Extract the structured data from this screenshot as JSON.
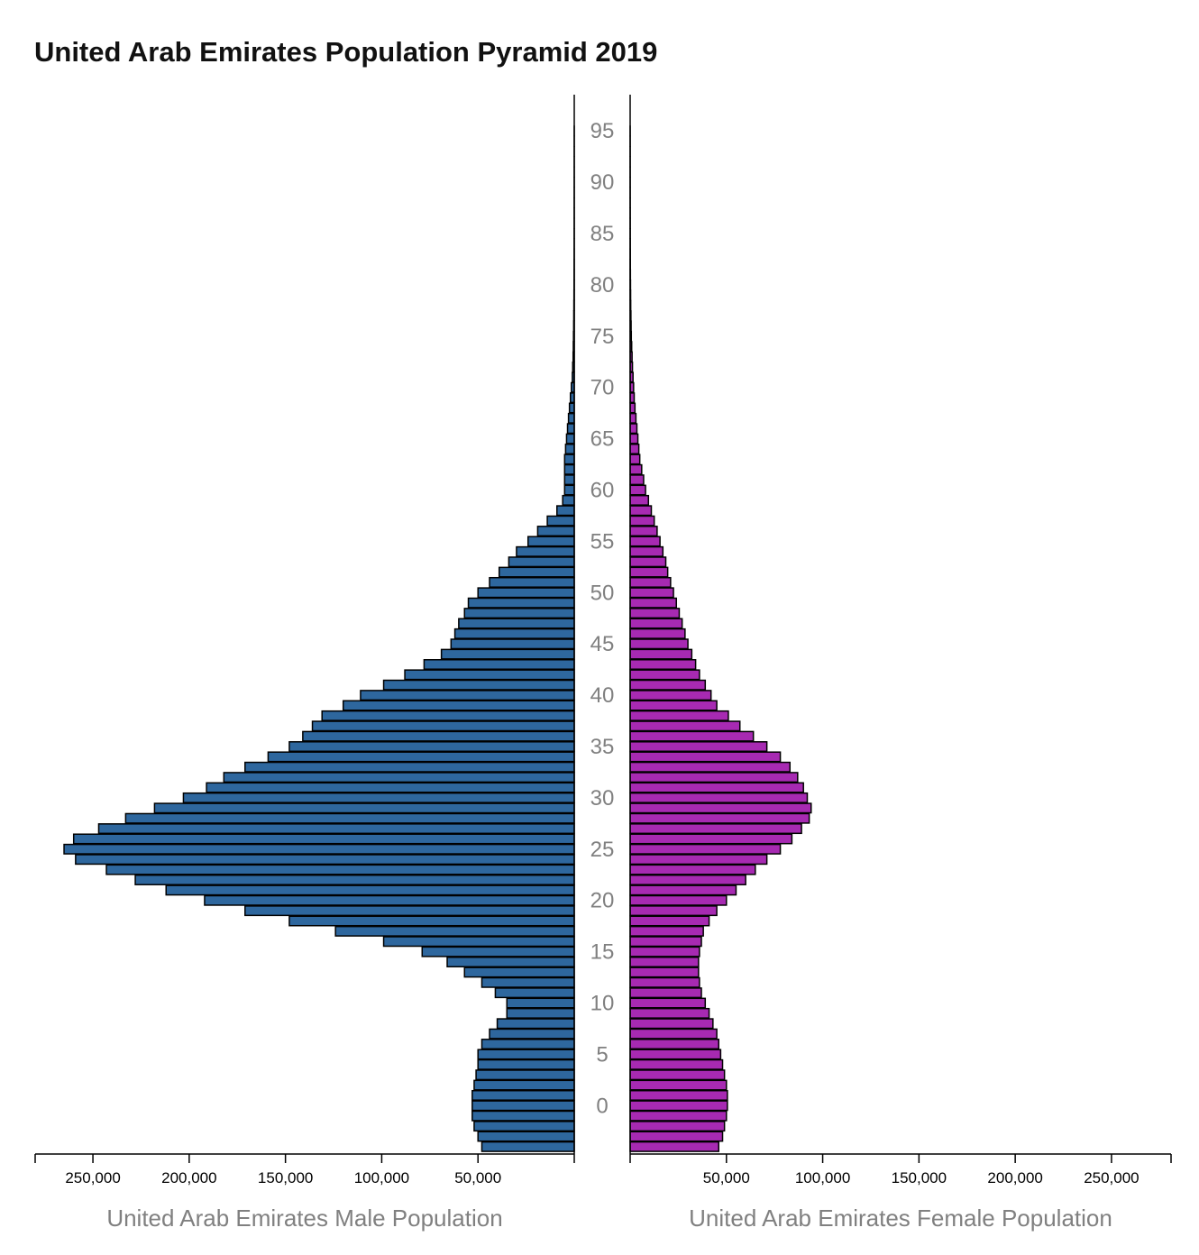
{
  "chart_data": {
    "type": "bar",
    "orientation": "horizontal-pyramid",
    "title": "United Arab Emirates Population Pyramid 2019",
    "left_axis_label": "United Arab Emirates Male Population",
    "right_axis_label": "United Arab Emirates Female Population",
    "age_tick_labels": [
      "95",
      "90",
      "85",
      "80",
      "75",
      "70",
      "65",
      "60",
      "55",
      "50",
      "45",
      "40",
      "35",
      "30",
      "25",
      "20",
      "15",
      "10",
      "5",
      "0"
    ],
    "male_tick_labels": [
      "250,000",
      "200,000",
      "150,000",
      "100,000",
      "50,000"
    ],
    "female_tick_labels": [
      "50,000",
      "100,000",
      "150,000",
      "200,000",
      "250,000"
    ],
    "xlim": [
      0,
      280000
    ],
    "colors": {
      "male": "#2e679e",
      "female": "#a72ab2"
    },
    "series": [
      {
        "name": "United Arab Emirates Male Population",
        "values": [
          48000,
          50000,
          52000,
          53000,
          53000,
          53000,
          52000,
          51000,
          50000,
          50000,
          48000,
          44000,
          40000,
          35000,
          35000,
          41000,
          48000,
          57000,
          66000,
          79000,
          99000,
          124000,
          148000,
          171000,
          192000,
          212000,
          228000,
          243000,
          259000,
          265000,
          260000,
          247000,
          233000,
          218000,
          203000,
          191000,
          182000,
          171000,
          159000,
          148000,
          141000,
          136000,
          131000,
          120000,
          111000,
          99000,
          88000,
          78000,
          69000,
          64000,
          62000,
          60000,
          57000,
          55000,
          50000,
          44000,
          39000,
          34000,
          30000,
          24000,
          19000,
          14000,
          9000,
          6000,
          5000,
          5000,
          5000,
          5000,
          4500,
          4000,
          3500,
          3000,
          2500,
          2000,
          1500,
          1000,
          800,
          600,
          500,
          400,
          300,
          250,
          200,
          150,
          120,
          100,
          80,
          60,
          50,
          40,
          30,
          25,
          20,
          15,
          10,
          8,
          5,
          3,
          2,
          1
        ]
      },
      {
        "name": "United Arab Emirates Female Population",
        "values": [
          46000,
          48000,
          49000,
          50000,
          50500,
          50500,
          50000,
          49000,
          48000,
          47000,
          46000,
          45000,
          43000,
          41000,
          39000,
          37000,
          36000,
          35500,
          35500,
          36000,
          37000,
          38000,
          41000,
          45000,
          50000,
          55000,
          60000,
          65000,
          71000,
          78000,
          84000,
          89000,
          93000,
          94000,
          92000,
          90000,
          87000,
          83000,
          78000,
          71000,
          64000,
          57000,
          51000,
          45000,
          42000,
          39000,
          36000,
          34000,
          32000,
          30000,
          28500,
          27000,
          25500,
          24000,
          22500,
          21000,
          19500,
          18500,
          17000,
          15500,
          14000,
          12500,
          11000,
          9500,
          8000,
          7000,
          6000,
          5000,
          4500,
          4000,
          3500,
          3000,
          2500,
          2100,
          1800,
          1500,
          1200,
          1000,
          800,
          600,
          500,
          400,
          300,
          250,
          200,
          150,
          120,
          100,
          80,
          60,
          50,
          40,
          30,
          25,
          20,
          15,
          10,
          8,
          5,
          3
        ]
      }
    ]
  }
}
